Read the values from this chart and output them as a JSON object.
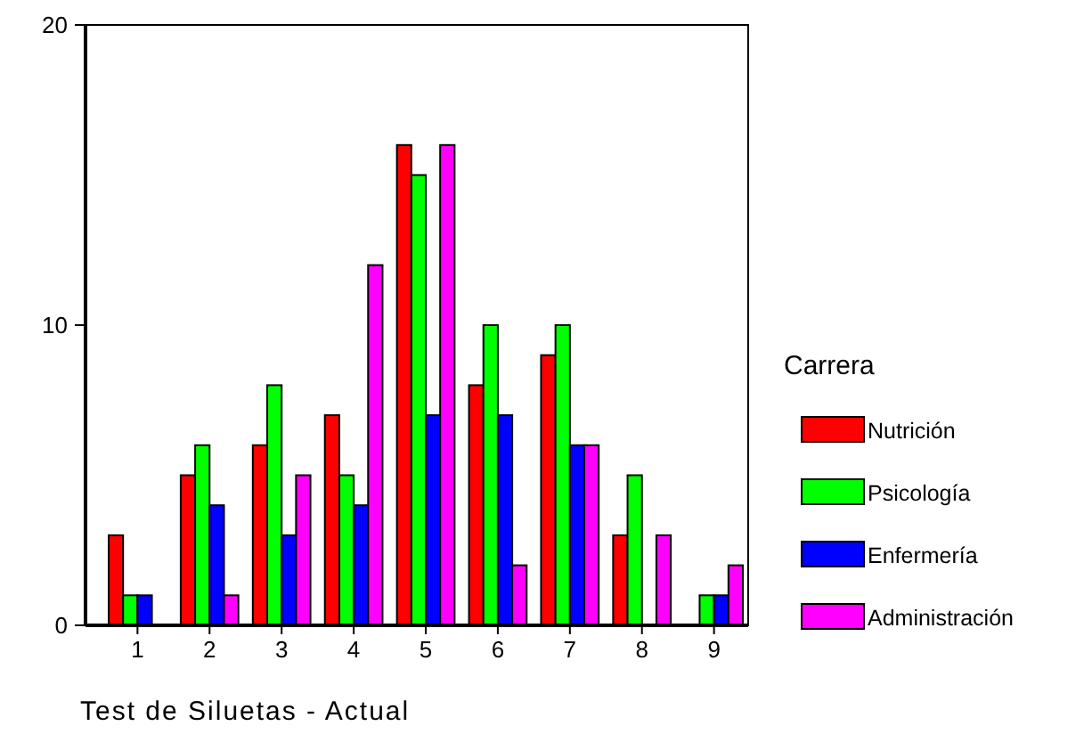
{
  "chart_data": {
    "type": "bar",
    "xlabel": "Test de Siluetas - Actual",
    "legend_title": "Carrera",
    "legend": "right",
    "categories": [
      "1",
      "2",
      "3",
      "4",
      "5",
      "6",
      "7",
      "8",
      "9"
    ],
    "ylim": [
      0,
      20
    ],
    "yticks": [
      0,
      10,
      20
    ],
    "grid": false,
    "series": [
      {
        "name": "Nutrición",
        "color": "#ff0000",
        "values": [
          3,
          5,
          6,
          7,
          16,
          8,
          9,
          3,
          0
        ]
      },
      {
        "name": "Psicología",
        "color": "#00ff00",
        "values": [
          1,
          6,
          8,
          5,
          15,
          10,
          10,
          5,
          1
        ]
      },
      {
        "name": "Enfermería",
        "color": "#0000ff",
        "values": [
          1,
          4,
          3,
          4,
          7,
          7,
          6,
          0,
          1
        ]
      },
      {
        "name": "Administración",
        "color": "#ff00ff",
        "values": [
          0,
          1,
          5,
          12,
          16,
          2,
          6,
          3,
          2
        ]
      }
    ]
  }
}
